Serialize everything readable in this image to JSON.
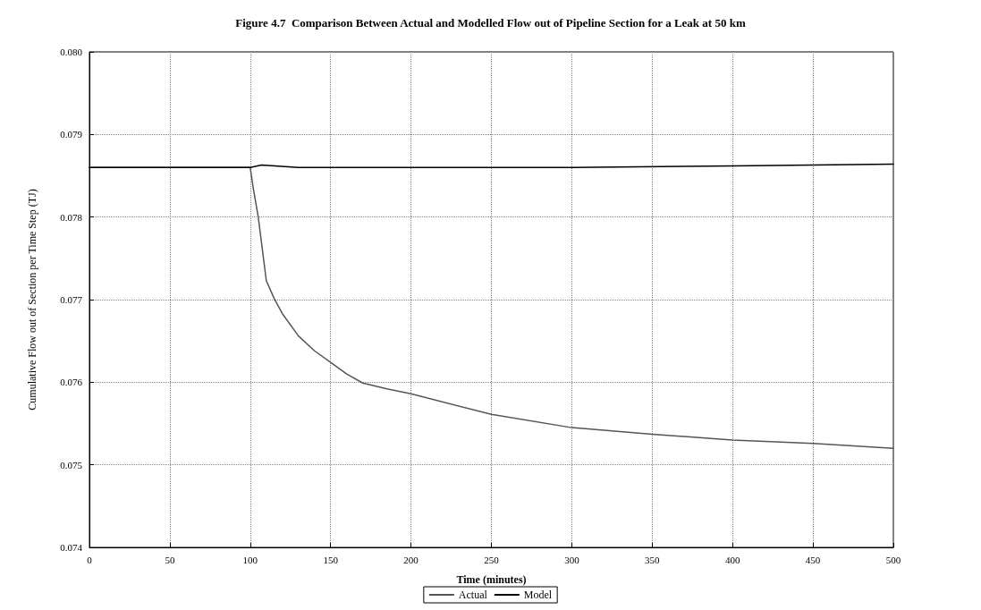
{
  "chart_data": {
    "type": "line",
    "title": "Figure 4.7  Comparison Between Actual and Modelled Flow out of Pipeline Section for a Leak at 50 km",
    "xlabel": "Time (minutes)",
    "ylabel": "Cumulative Flow out of Section per Time Step (TJ)",
    "xlim": [
      0,
      500
    ],
    "xticks": [
      0,
      50,
      100,
      150,
      200,
      250,
      300,
      350,
      400,
      450,
      500
    ],
    "ylim": [
      0.074,
      0.08
    ],
    "yticks": [
      {
        "value": 0.074,
        "label": "0.074"
      },
      {
        "value": 0.075,
        "label": "0.075"
      },
      {
        "value": 0.076,
        "label": "0.076"
      },
      {
        "value": 0.077,
        "label": "0.077"
      },
      {
        "value": 0.078,
        "label": "0.078"
      },
      {
        "value": 0.079,
        "label": "0.079"
      },
      {
        "value": 0.08,
        "label": "0.080"
      }
    ],
    "grid": true,
    "legend": "bottom",
    "marker": "none",
    "line_style": "solid",
    "series": [
      {
        "name": "Actual",
        "color": "#555555",
        "x": [
          0,
          100,
          102,
          105,
          110,
          115,
          120,
          130,
          140,
          150,
          160,
          170,
          185,
          200,
          250,
          300,
          350,
          400,
          450,
          500
        ],
        "values": [
          0.0786,
          0.0786,
          0.07834,
          0.078,
          0.07723,
          0.07701,
          0.07683,
          0.07656,
          0.07638,
          0.07624,
          0.0761,
          0.07599,
          0.07592,
          0.07586,
          0.07561,
          0.07545,
          0.07537,
          0.0753,
          0.07526,
          0.0752
        ]
      },
      {
        "name": "Model",
        "color": "#000000",
        "x": [
          0,
          100,
          107,
          130,
          300,
          400,
          500
        ],
        "values": [
          0.0786,
          0.0786,
          0.07863,
          0.0786,
          0.0786,
          0.07862,
          0.07864
        ]
      }
    ]
  }
}
